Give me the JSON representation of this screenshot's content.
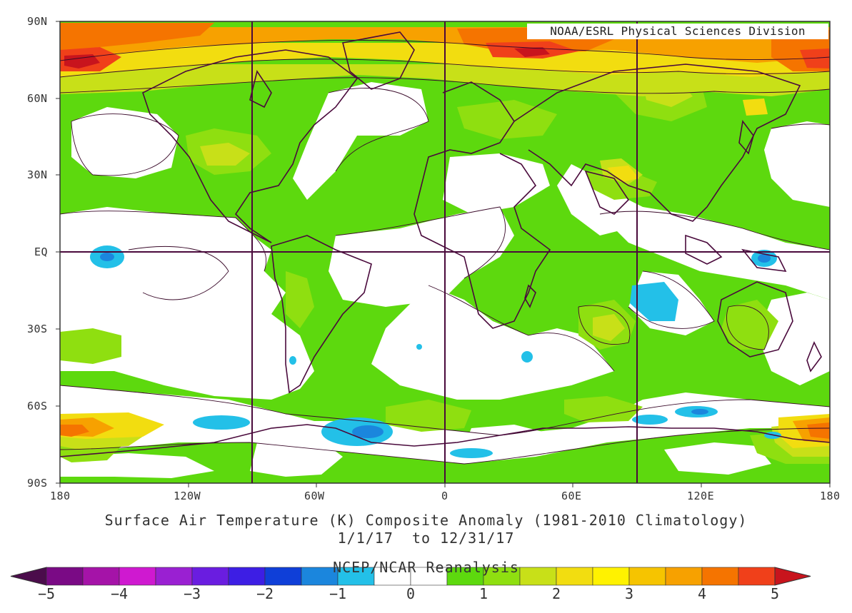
{
  "credit": "NOAA/ESRL Physical Sciences Division",
  "axes": {
    "lat_labels": [
      "90N",
      "60N",
      "30N",
      "EQ",
      "30S",
      "60S",
      "90S"
    ],
    "lon_labels": [
      "180",
      "120W",
      "60W",
      "0",
      "60E",
      "120E",
      "180"
    ]
  },
  "title": {
    "line1": "Surface Air Temperature (K) Composite Anomaly (1981-2010 Climatology)",
    "line2": "1/1/17  to 12/31/17",
    "line3": "NCEP/NCAR Reanalysis"
  },
  "colorbar": {
    "labels": [
      "-5",
      "-4",
      "-3",
      "-2",
      "-1",
      "0",
      "1",
      "2",
      "3",
      "4",
      "5"
    ],
    "colors": [
      "#4b0c4b",
      "#7a0a85",
      "#a513a8",
      "#cf19d0",
      "#9a20d2",
      "#6a1de0",
      "#3d1ee4",
      "#0f3fd8",
      "#1b86dd",
      "#23c0e8",
      "#ffffff",
      "#ffffff",
      "#5dd90e",
      "#8fdf10",
      "#c8e018",
      "#f2dd10",
      "#fff200",
      "#f6c400",
      "#f7a100",
      "#f57400",
      "#f0401a",
      "#c8141d"
    ]
  },
  "colors": {
    "green": "#5dd90e",
    "light_green": "#8fdf10",
    "yellow_green": "#c8e018",
    "yellow": "#f2dd10",
    "orange": "#f7a100",
    "dark_orange": "#f57400",
    "red": "#f0401a",
    "dark_red": "#c8141d",
    "light_blue": "#23c0e8",
    "blue": "#1b86dd",
    "frame": "#4a0a3c"
  }
}
